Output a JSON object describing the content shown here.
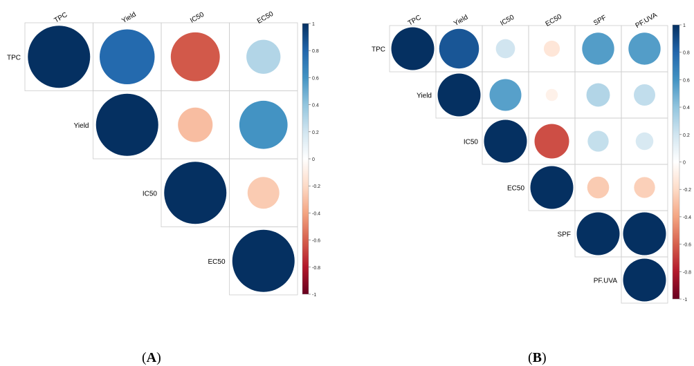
{
  "colors": {
    "scale": [
      "#67001F",
      "#B2182B",
      "#D6604D",
      "#F4A582",
      "#FDDBC7",
      "#FFFFFF",
      "#D1E5F0",
      "#92C5DE",
      "#4393C3",
      "#2166AC",
      "#053061"
    ],
    "grid": "#cccccc"
  },
  "panels": [
    {
      "label_open": "(",
      "label_letter": "A",
      "label_close": ")"
    },
    {
      "label_open": "(",
      "label_letter": "B",
      "label_close": ")"
    }
  ],
  "chart_data": [
    {
      "type": "heatmap",
      "style": "correlation-circles-upper-triangle",
      "variables": [
        "TPC",
        "Yield",
        "IC50",
        "EC50"
      ],
      "matrix": [
        [
          1.0,
          0.78,
          -0.62,
          0.3
        ],
        [
          0.78,
          1.0,
          -0.31,
          0.6
        ],
        [
          -0.62,
          -0.31,
          1.0,
          -0.26
        ],
        [
          0.3,
          0.6,
          -0.26,
          1.0
        ]
      ],
      "colorbar": {
        "ticks": [
          "1",
          "0.8",
          "0.6",
          "0.4",
          "0.2",
          "0",
          "-0.2",
          "-0.4",
          "-0.6",
          "-0.8",
          "-1"
        ],
        "range": [
          -1,
          1
        ]
      }
    },
    {
      "type": "heatmap",
      "style": "correlation-circles-upper-triangle",
      "variables": [
        "TPC",
        "Yield",
        "IC50",
        "EC50",
        "SPF",
        "PF.UVA"
      ],
      "matrix": [
        [
          1.0,
          0.86,
          0.2,
          -0.14,
          0.56,
          0.56
        ],
        [
          0.86,
          1.0,
          0.55,
          -0.08,
          0.3,
          0.25
        ],
        [
          0.2,
          0.55,
          1.0,
          -0.65,
          0.24,
          0.17
        ],
        [
          -0.14,
          -0.08,
          -0.65,
          1.0,
          -0.26,
          -0.24
        ],
        [
          0.56,
          0.3,
          0.24,
          -0.26,
          1.0,
          1.0
        ],
        [
          0.56,
          0.25,
          0.17,
          -0.24,
          1.0,
          1.0
        ]
      ],
      "colorbar": {
        "ticks": [
          "1",
          "0.8",
          "0.6",
          "0.4",
          "0.2",
          "0",
          "-0.2",
          "-0.4",
          "-0.6",
          "-0.8",
          "-1"
        ],
        "range": [
          -1,
          1
        ]
      }
    }
  ]
}
